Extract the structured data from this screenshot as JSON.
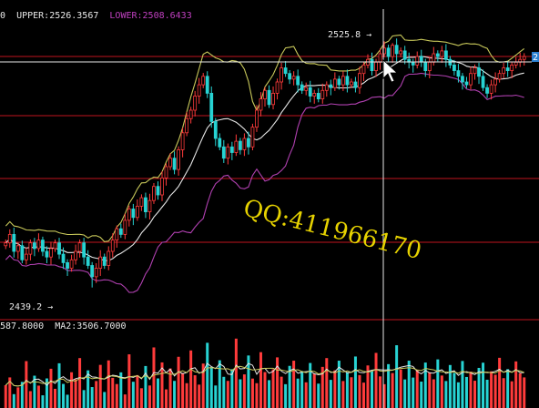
{
  "chart_data": [
    {
      "type": "candlestick",
      "indicator_header": {
        "fragment": "0",
        "upper_label": "UPPER:",
        "upper_value": "2526.3567",
        "lower_label": "LOWER:",
        "lower_value": "2508.6433"
      },
      "annotations": {
        "high_label": "2525.8",
        "low_label": "2439.2",
        "right_tag": "2"
      },
      "watermark": "QQ:411966170",
      "colors": {
        "up": "#ff3b3b",
        "down": "#27d3d3",
        "mid_band": "#e8e8e8",
        "upper_band": "#c8c85a",
        "lower_band": "#b040b0",
        "grid": "#c0141e"
      },
      "ylim": [
        2432,
        2532
      ],
      "high": 2525.8,
      "low": 2439.2,
      "close": [
        2455,
        2458,
        2452,
        2454,
        2449,
        2451,
        2455,
        2453,
        2456,
        2452,
        2450,
        2453,
        2455,
        2451,
        2448,
        2446,
        2449,
        2452,
        2455,
        2450,
        2447,
        2443,
        2446,
        2450,
        2447,
        2452,
        2456,
        2460,
        2458,
        2463,
        2467,
        2464,
        2468,
        2471,
        2466,
        2470,
        2475,
        2472,
        2478,
        2482,
        2485,
        2481,
        2488,
        2494,
        2499,
        2502,
        2507,
        2511,
        2514,
        2508,
        2498,
        2492,
        2489,
        2485,
        2489,
        2487,
        2491,
        2488,
        2492,
        2489,
        2496,
        2502,
        2506,
        2509,
        2504,
        2508,
        2512,
        2517,
        2515,
        2513,
        2514,
        2511,
        2509,
        2510,
        2507,
        2508,
        2506,
        2509,
        2511,
        2510,
        2513,
        2511,
        2514,
        2511,
        2512,
        2510,
        2515,
        2518,
        2520,
        2516,
        2519,
        2522,
        2524,
        2521,
        2525,
        2522,
        2523,
        2520,
        2519,
        2518,
        2521,
        2519,
        2516,
        2519,
        2522,
        2521,
        2523,
        2520,
        2518,
        2516,
        2514,
        2512,
        2511,
        2515,
        2517,
        2514,
        2510,
        2508,
        2511,
        2513,
        2515,
        2517,
        2516,
        2518,
        2519,
        2520,
        2521
      ]
    },
    {
      "type": "bar",
      "indicator_header": {
        "fragment": "587.8000",
        "ma2_label": "MA2:",
        "ma2_value": "3506.7000"
      },
      "volume": [
        1580,
        2120,
        960,
        1430,
        1810,
        3250,
        1170,
        2240,
        1550,
        880,
        2050,
        2720,
        1330,
        3100,
        1670,
        920,
        2480,
        1990,
        3460,
        1240,
        2610,
        1450,
        1870,
        2990,
        1110,
        3300,
        2090,
        1660,
        2470,
        940,
        3720,
        1820,
        2280,
        1370,
        2910,
        1560,
        4200,
        2050,
        3160,
        1290,
        2740,
        1880,
        3550,
        2430,
        1720,
        3990,
        2270,
        1620,
        3080,
        4520,
        2850,
        1560,
        3310,
        2160,
        1880,
        2690,
        4810,
        1990,
        2330,
        3640,
        2040,
        1720,
        3870,
        2490,
        1930,
        2680,
        3510,
        2170,
        1650,
        2920,
        3280,
        2040,
        2560,
        1780,
        3120,
        2370,
        1690,
        2850,
        3460,
        1950,
        2610,
        3280,
        1870,
        2490,
        2130,
        3570,
        2280,
        1760,
        2950,
        2540,
        3820,
        2190,
        1650,
        3040,
        2420,
        4350,
        2670,
        1980,
        3280,
        2110,
        2640,
        1830,
        3150,
        2470,
        1990,
        3370,
        2250,
        1870,
        2980,
        2430,
        1780,
        3260,
        2150,
        2520,
        1890,
        2780,
        3140,
        1960,
        2540,
        2310,
        3480,
        2070,
        2690,
        1850,
        3230,
        2400,
        2120
      ]
    }
  ]
}
